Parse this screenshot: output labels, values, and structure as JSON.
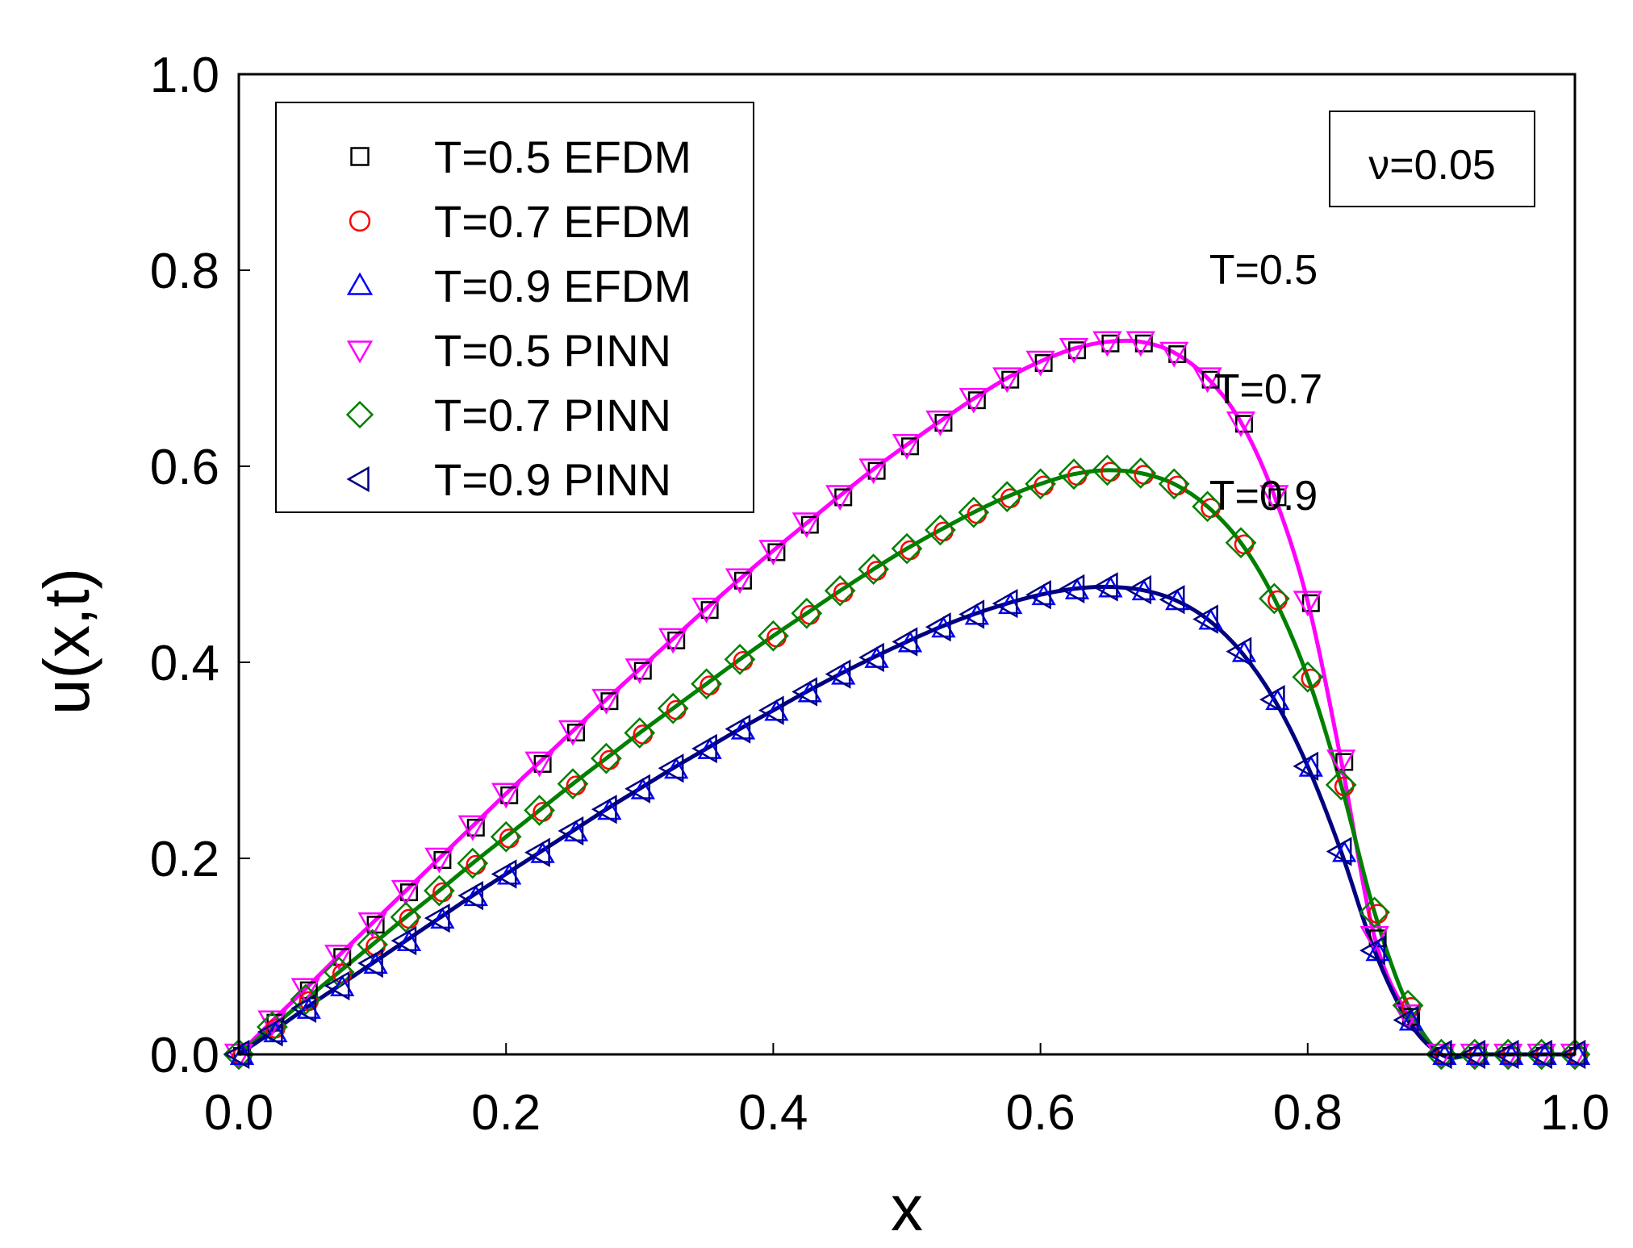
{
  "chart_data": {
    "type": "line",
    "xlabel": "x",
    "ylabel": "u(x,t)",
    "xlim": [
      0.0,
      1.0
    ],
    "ylim": [
      0.0,
      1.0
    ],
    "x_ticks": [
      "0.0",
      "0.2",
      "0.4",
      "0.6",
      "0.8",
      "1.0"
    ],
    "y_ticks": [
      "0.0",
      "0.2",
      "0.4",
      "0.6",
      "0.8",
      "1.0"
    ],
    "annotation": "ν=0.05",
    "curve_labels": [
      "T=0.5",
      "T=0.7",
      "T=0.9"
    ],
    "legend": {
      "placement": "top-left",
      "entries": [
        {
          "label": "T=0.5 EFDM",
          "marker": "square",
          "color": "#000000"
        },
        {
          "label": "T=0.7 EFDM",
          "marker": "circle",
          "color": "#ff0000"
        },
        {
          "label": "T=0.9 EFDM",
          "marker": "triangle-up",
          "color": "#0000ff"
        },
        {
          "label": "T=0.5 PINN",
          "marker": "triangle-down",
          "color": "#ff00ff"
        },
        {
          "label": "T=0.7 PINN",
          "marker": "diamond",
          "color": "#008000"
        },
        {
          "label": "T=0.9 PINN",
          "marker": "triangle-left",
          "color": "#000080"
        }
      ]
    },
    "curves": [
      {
        "name": "T=0.5",
        "line_color": "#ff00ff",
        "x": [
          0.0,
          0.025,
          0.05,
          0.075,
          0.1,
          0.125,
          0.15,
          0.175,
          0.2,
          0.225,
          0.25,
          0.275,
          0.3,
          0.325,
          0.35,
          0.375,
          0.4,
          0.425,
          0.45,
          0.475,
          0.5,
          0.525,
          0.55,
          0.575,
          0.6,
          0.625,
          0.65,
          0.675,
          0.7,
          0.725,
          0.75,
          0.775,
          0.8,
          0.825,
          0.85,
          0.875,
          0.9,
          0.925,
          0.95,
          0.975,
          1.0
        ],
        "y": [
          0.0,
          0.034,
          0.067,
          0.101,
          0.134,
          0.167,
          0.2,
          0.233,
          0.266,
          0.298,
          0.33,
          0.362,
          0.393,
          0.424,
          0.455,
          0.485,
          0.514,
          0.542,
          0.57,
          0.597,
          0.622,
          0.646,
          0.669,
          0.69,
          0.707,
          0.72,
          0.727,
          0.727,
          0.716,
          0.69,
          0.645,
          0.57,
          0.462,
          0.3,
          0.12,
          0.04,
          0.0,
          0.0,
          0.0,
          0.0,
          0.0
        ],
        "marker_x": [
          0.0,
          0.025,
          0.05,
          0.075,
          0.1,
          0.125,
          0.15,
          0.175,
          0.2,
          0.225,
          0.25,
          0.275,
          0.3,
          0.325,
          0.35,
          0.375,
          0.4,
          0.425,
          0.45,
          0.475,
          0.5,
          0.525,
          0.55,
          0.575,
          0.6,
          0.625,
          0.65,
          0.675,
          0.7,
          0.725,
          0.75,
          0.775,
          0.8,
          0.825,
          0.85,
          0.875,
          0.9,
          0.925,
          0.95,
          0.975,
          1.0
        ]
      },
      {
        "name": "T=0.7",
        "line_color": "#008000",
        "x": [
          0.0,
          0.025,
          0.05,
          0.075,
          0.1,
          0.125,
          0.15,
          0.175,
          0.2,
          0.225,
          0.25,
          0.275,
          0.3,
          0.325,
          0.35,
          0.375,
          0.4,
          0.425,
          0.45,
          0.475,
          0.5,
          0.525,
          0.55,
          0.575,
          0.6,
          0.625,
          0.65,
          0.675,
          0.7,
          0.725,
          0.75,
          0.775,
          0.8,
          0.825,
          0.85,
          0.875,
          0.9,
          0.925,
          0.95,
          0.975,
          1.0
        ],
        "y": [
          0.0,
          0.028,
          0.056,
          0.084,
          0.112,
          0.14,
          0.167,
          0.195,
          0.222,
          0.249,
          0.276,
          0.302,
          0.328,
          0.353,
          0.378,
          0.403,
          0.427,
          0.45,
          0.473,
          0.495,
          0.516,
          0.535,
          0.553,
          0.569,
          0.582,
          0.592,
          0.596,
          0.593,
          0.582,
          0.559,
          0.522,
          0.465,
          0.385,
          0.275,
          0.145,
          0.05,
          0.0,
          0.0,
          0.0,
          0.0,
          0.0
        ],
        "marker_x": [
          0.0,
          0.025,
          0.05,
          0.075,
          0.1,
          0.125,
          0.15,
          0.175,
          0.2,
          0.225,
          0.25,
          0.275,
          0.3,
          0.325,
          0.35,
          0.375,
          0.4,
          0.425,
          0.45,
          0.475,
          0.5,
          0.525,
          0.55,
          0.575,
          0.6,
          0.625,
          0.65,
          0.675,
          0.7,
          0.725,
          0.75,
          0.775,
          0.8,
          0.825,
          0.85,
          0.875,
          0.9,
          0.925,
          0.95,
          0.975,
          1.0
        ]
      },
      {
        "name": "T=0.9",
        "line_color": "#000080",
        "x": [
          0.0,
          0.025,
          0.05,
          0.075,
          0.1,
          0.125,
          0.15,
          0.175,
          0.2,
          0.225,
          0.25,
          0.275,
          0.3,
          0.325,
          0.35,
          0.375,
          0.4,
          0.425,
          0.45,
          0.475,
          0.5,
          0.525,
          0.55,
          0.575,
          0.6,
          0.625,
          0.65,
          0.675,
          0.7,
          0.725,
          0.75,
          0.775,
          0.8,
          0.825,
          0.85,
          0.875,
          0.9,
          0.925,
          0.95,
          0.975,
          1.0
        ],
        "y": [
          0.0,
          0.023,
          0.047,
          0.07,
          0.093,
          0.116,
          0.139,
          0.162,
          0.184,
          0.206,
          0.228,
          0.25,
          0.271,
          0.292,
          0.312,
          0.332,
          0.351,
          0.37,
          0.388,
          0.405,
          0.421,
          0.436,
          0.449,
          0.46,
          0.469,
          0.475,
          0.477,
          0.474,
          0.464,
          0.444,
          0.411,
          0.362,
          0.294,
          0.207,
          0.106,
          0.035,
          0.0,
          0.0,
          0.0,
          0.0,
          0.0
        ],
        "marker_x": [
          0.0,
          0.025,
          0.05,
          0.075,
          0.1,
          0.125,
          0.15,
          0.175,
          0.2,
          0.225,
          0.25,
          0.275,
          0.3,
          0.325,
          0.35,
          0.375,
          0.4,
          0.425,
          0.45,
          0.475,
          0.5,
          0.525,
          0.55,
          0.575,
          0.6,
          0.625,
          0.65,
          0.675,
          0.7,
          0.725,
          0.75,
          0.775,
          0.8,
          0.825,
          0.85,
          0.875,
          0.9,
          0.925,
          0.95,
          0.975,
          1.0
        ]
      }
    ]
  }
}
